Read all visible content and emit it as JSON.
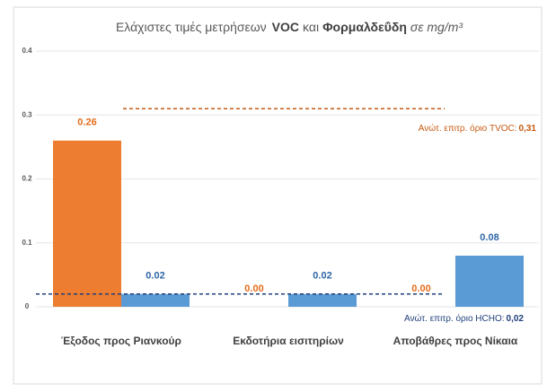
{
  "chart_data": {
    "type": "bar",
    "title": [
      "Ελάχιστες τιμές μετρήσεων",
      "VOC",
      "και",
      "Φορμαλδεΰδη",
      "σε mg/m³"
    ],
    "categories": [
      "Έξοδος προς Ριανκούρ",
      "Εκδοτήρια εισιτηρίων",
      "Αποβάθρες προς Νίκαια"
    ],
    "series": [
      {
        "name": "VOC",
        "color": "#ed7d31",
        "label_color": "#e46c1a",
        "values": [
          0.26,
          0,
          0
        ],
        "value_labels": [
          "0.26",
          "0.00",
          "0.00"
        ]
      },
      {
        "name": "HCHO",
        "color": "#5b9bd5",
        "label_color": "#2e66a8",
        "values": [
          0.02,
          0.02,
          0.08
        ],
        "value_labels": [
          "0.02",
          "0.02",
          "0.08"
        ]
      }
    ],
    "reference_lines": [
      {
        "label": "Ανώτ. επιτρ. όριο TVOC:",
        "value": 0.31,
        "value_label": "0,31",
        "color": "#c55a11"
      },
      {
        "label": "Ανώτ. επιτρ. όριο HCHO:",
        "value": 0.02,
        "value_label": "0,02",
        "color": "#1f3f7a"
      }
    ],
    "ylim": [
      0,
      0.4
    ],
    "yticks": [
      0,
      0.1,
      0.2,
      0.3,
      0.4
    ],
    "grid": true
  }
}
